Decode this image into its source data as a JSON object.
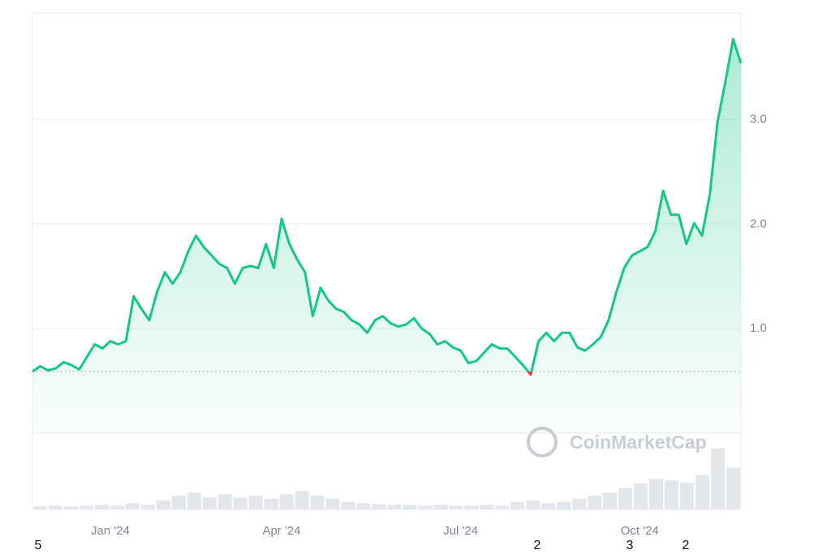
{
  "chart_data": {
    "type": "line",
    "categories": [
      null,
      null,
      null,
      null,
      null,
      null,
      null,
      null,
      null,
      null,
      "Jan '24",
      null,
      null,
      null,
      null,
      null,
      null,
      null,
      null,
      null,
      null,
      null,
      null,
      null,
      null,
      null,
      null,
      null,
      null,
      null,
      null,
      null,
      "Apr '24",
      null,
      null,
      null,
      null,
      null,
      null,
      null,
      null,
      null,
      null,
      null,
      null,
      null,
      null,
      null,
      null,
      null,
      null,
      null,
      null,
      null,
      null,
      "Jul '24",
      null,
      null,
      null,
      null,
      null,
      null,
      null,
      null,
      null,
      null,
      null,
      null,
      null,
      null,
      null,
      null,
      null,
      null,
      null,
      null,
      null,
      null,
      "Oct '24",
      null,
      null,
      null,
      null,
      null,
      null,
      null,
      null,
      null,
      null,
      null,
      null,
      null
    ],
    "values": [
      0.59,
      0.64,
      0.6,
      0.62,
      0.68,
      0.65,
      0.61,
      0.73,
      0.85,
      0.81,
      0.88,
      0.85,
      0.88,
      1.31,
      1.19,
      1.08,
      1.35,
      1.54,
      1.43,
      1.54,
      1.74,
      1.89,
      1.78,
      1.7,
      1.62,
      1.58,
      1.43,
      1.58,
      1.6,
      1.58,
      1.81,
      1.58,
      2.05,
      1.81,
      1.66,
      1.54,
      1.12,
      1.39,
      1.27,
      1.19,
      1.16,
      1.08,
      1.04,
      0.96,
      1.08,
      1.12,
      1.05,
      1.02,
      1.04,
      1.1,
      1.0,
      0.95,
      0.85,
      0.88,
      0.82,
      0.79,
      0.67,
      0.69,
      0.77,
      0.85,
      0.81,
      0.81,
      0.73,
      0.65,
      0.56,
      0.88,
      0.96,
      0.88,
      0.96,
      0.96,
      0.82,
      0.79,
      0.85,
      0.92,
      1.08,
      1.35,
      1.58,
      1.7,
      1.74,
      1.78,
      1.93,
      2.32,
      2.09,
      2.09,
      1.81,
      2.01,
      1.89,
      2.28,
      2.98,
      3.36,
      3.77,
      3.54
    ],
    "color": "#16c784",
    "down_color": "#ea3943",
    "ylim": [
      0,
      4.02
    ],
    "yticks": [
      {
        "value": 1,
        "label": "1.0"
      },
      {
        "value": 2,
        "label": "2.0"
      },
      {
        "value": 3,
        "label": "3.0"
      }
    ],
    "grid": true,
    "volume": {
      "values": [
        4,
        5,
        4,
        5,
        6,
        5,
        8,
        6,
        12,
        18,
        22,
        16,
        20,
        15,
        18,
        14,
        20,
        24,
        18,
        14,
        10,
        8,
        7,
        6,
        6,
        5,
        6,
        5,
        5,
        6,
        5,
        10,
        12,
        8,
        10,
        14,
        18,
        22,
        28,
        34,
        40,
        38,
        35,
        45,
        80,
        55
      ],
      "ylim": [
        0,
        100
      ],
      "color": "#e3e6eb"
    },
    "watermark": "CoinMarketCap",
    "footer_labels": [
      "5",
      "2",
      "3",
      "2"
    ]
  }
}
